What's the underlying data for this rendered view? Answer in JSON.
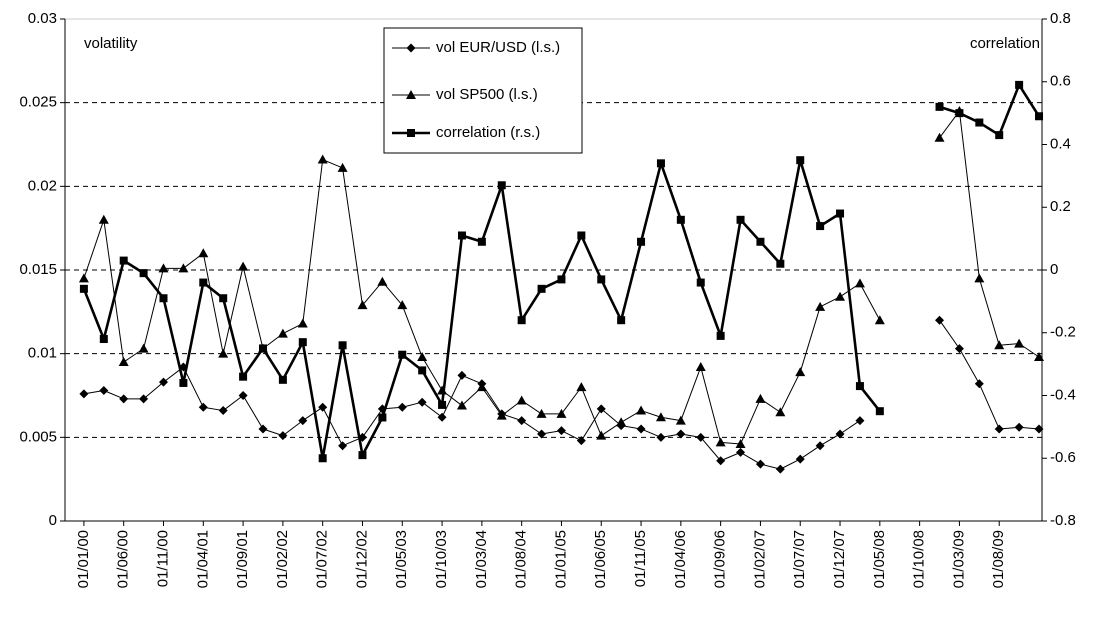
{
  "chart_data": {
    "type": "line",
    "annotations": [
      "volatility",
      "correlation"
    ],
    "categories": [
      "01/01/00",
      null,
      "01/06/00",
      null,
      "01/11/00",
      null,
      "01/04/01",
      null,
      "01/09/01",
      null,
      "01/02/02",
      null,
      "01/07/02",
      null,
      "01/12/02",
      null,
      "01/05/03",
      null,
      "01/10/03",
      null,
      "01/03/04",
      null,
      "01/08/04",
      null,
      "01/01/05",
      null,
      "01/06/05",
      null,
      "01/11/05",
      null,
      "01/04/06",
      null,
      "01/09/06",
      null,
      "01/02/07",
      null,
      "01/07/07",
      null,
      "01/12/07",
      null,
      "01/05/08",
      null,
      "01/10/08",
      null,
      "01/03/09",
      null,
      "01/08/09",
      null,
      null
    ],
    "ylim": [
      0,
      0.03
    ],
    "yticks": [
      0,
      0.005,
      0.01,
      0.015,
      0.02,
      0.025,
      0.03
    ],
    "y2lim": [
      -0.8,
      0.8
    ],
    "y2ticks": [
      -0.8,
      -0.6,
      -0.4,
      -0.2,
      0,
      0.2,
      0.4,
      0.6,
      0.8
    ],
    "grid": true,
    "series": [
      {
        "name": "vol EUR/USD  (l.s.)",
        "color": "#000000",
        "marker": "diamond",
        "line_width": 1,
        "values": [
          0.0076,
          0.0078,
          0.0073,
          0.0073,
          0.0083,
          0.0092,
          0.0068,
          0.0066,
          0.0075,
          0.0055,
          0.0051,
          0.006,
          0.0068,
          0.0045,
          0.005,
          0.0067,
          0.0068,
          0.0071,
          0.0062,
          0.0087,
          0.0082,
          0.0064,
          0.006,
          0.0052,
          0.0054,
          0.0048,
          0.0067,
          0.0057,
          0.0055,
          0.005,
          0.0052,
          0.005,
          0.0036,
          0.0041,
          0.0034,
          0.0031,
          0.0037,
          0.0045,
          0.0052,
          0.006,
          null,
          null,
          null,
          0.012,
          0.0103,
          0.0082,
          0.0055,
          0.0056,
          0.0055
        ]
      },
      {
        "name": "vol SP500 (l.s.)",
        "color": "#000000",
        "marker": "triangle",
        "line_width": 1,
        "values": [
          0.0145,
          0.018,
          0.0095,
          0.0103,
          0.0151,
          0.0151,
          0.016,
          0.01,
          0.0152,
          0.0103,
          0.0112,
          0.0118,
          0.0216,
          0.0211,
          0.0129,
          0.0143,
          0.0129,
          0.0098,
          0.0078,
          0.0069,
          0.008,
          0.0063,
          0.0072,
          0.0064,
          0.0064,
          0.008,
          0.0051,
          0.0059,
          0.0066,
          0.0062,
          0.006,
          0.0092,
          0.0047,
          0.0046,
          0.0073,
          0.0065,
          0.0089,
          0.0128,
          0.0134,
          0.0142,
          0.012,
          null,
          null,
          0.0229,
          0.0245,
          0.0145,
          0.0105,
          0.0106,
          0.0098
        ]
      },
      {
        "name": "correlation (r.s.)",
        "color": "#000000",
        "marker": "square",
        "line_width": 2.6,
        "axis": "y2",
        "values": [
          -0.06,
          -0.22,
          0.03,
          -0.01,
          -0.09,
          -0.36,
          -0.04,
          -0.09,
          -0.34,
          -0.25,
          -0.35,
          -0.23,
          -0.6,
          -0.24,
          -0.59,
          -0.47,
          -0.27,
          -0.32,
          -0.43,
          0.11,
          0.09,
          0.27,
          -0.16,
          -0.06,
          -0.03,
          0.11,
          -0.03,
          -0.16,
          0.09,
          0.34,
          0.16,
          -0.04,
          -0.21,
          0.16,
          0.09,
          0.02,
          0.35,
          0.14,
          0.18,
          -0.37,
          -0.45,
          null,
          null,
          0.52,
          0.5,
          0.47,
          0.43,
          0.59,
          0.49
        ]
      }
    ]
  }
}
